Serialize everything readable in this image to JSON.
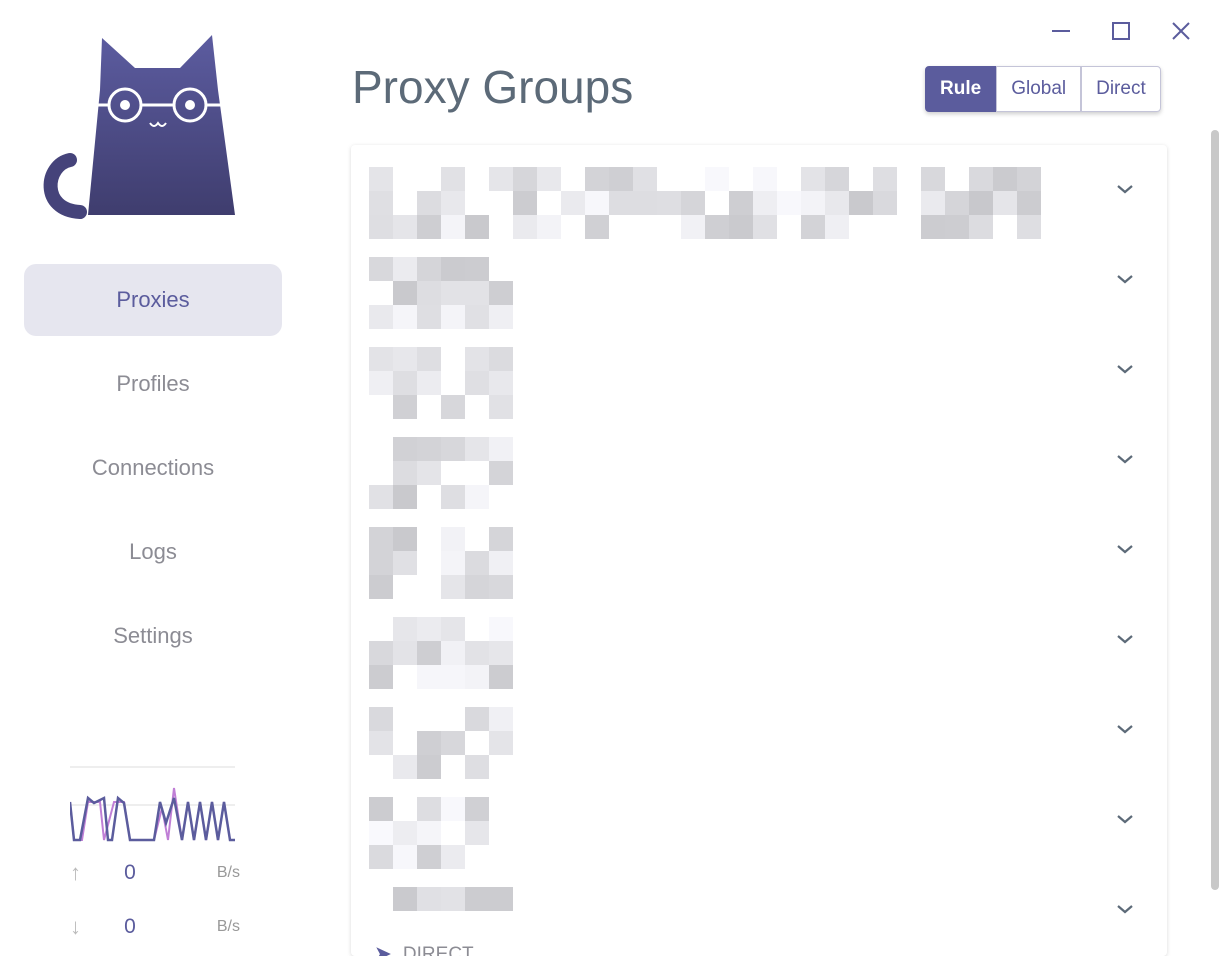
{
  "window": {
    "controls": [
      "minimize",
      "maximize",
      "close"
    ]
  },
  "sidebar": {
    "items": [
      {
        "label": "Proxies",
        "active": true
      },
      {
        "label": "Profiles"
      },
      {
        "label": "Connections"
      },
      {
        "label": "Logs"
      },
      {
        "label": "Settings"
      }
    ],
    "traffic": {
      "upload": "0",
      "upload_unit": "B/s",
      "download": "0",
      "download_unit": "B/s"
    }
  },
  "header": {
    "title": "Proxy Groups",
    "modes": [
      "Rule",
      "Global",
      "Direct"
    ],
    "selected_mode": "Rule"
  },
  "groups": {
    "count": 9,
    "last_selected": "DIRECT"
  },
  "colors": {
    "accent": "#5b5c9d",
    "title": "#5c6a78"
  }
}
